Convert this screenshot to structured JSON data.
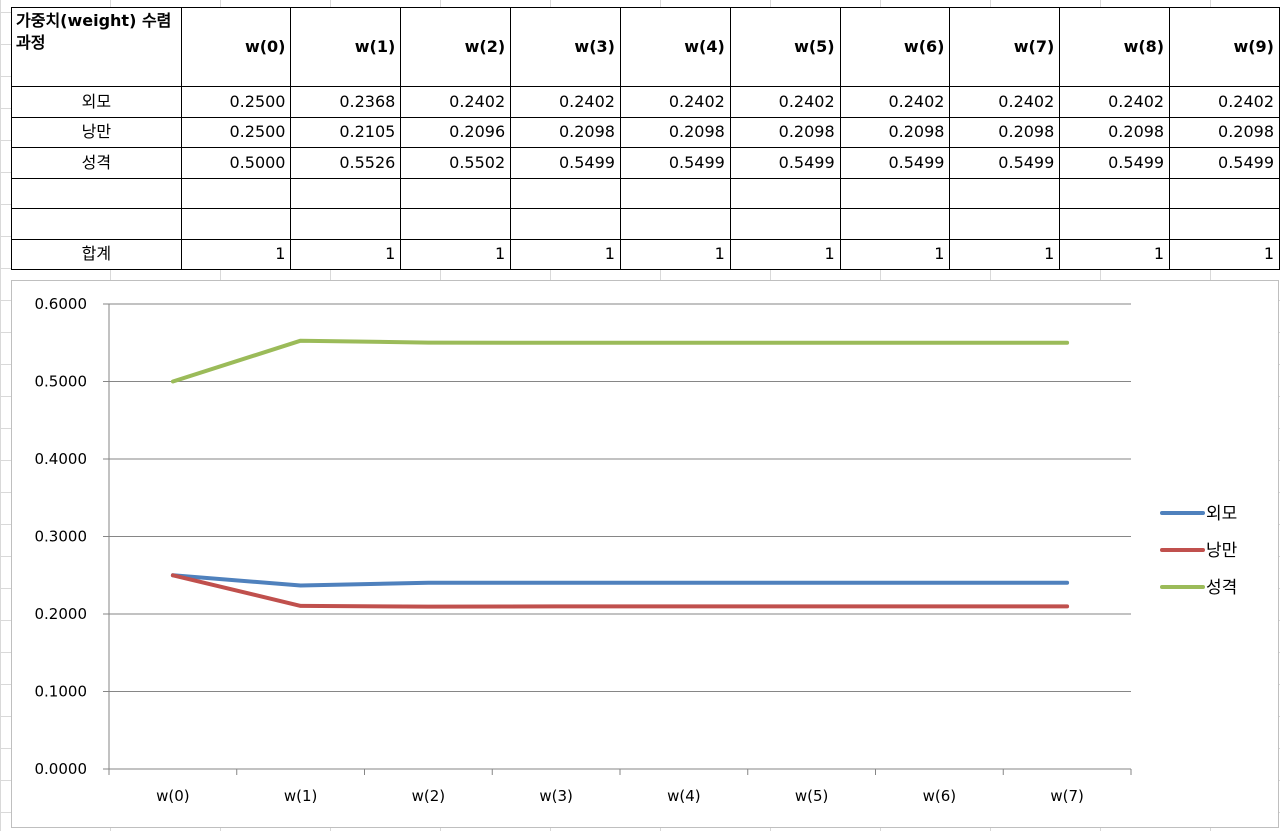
{
  "table": {
    "corner_label": "가중치(weight) 수렴과정",
    "headers": [
      "w(0)",
      "w(1)",
      "w(2)",
      "w(3)",
      "w(4)",
      "w(5)",
      "w(6)",
      "w(7)",
      "w(8)",
      "w(9)"
    ],
    "rows": [
      {
        "label": "외모",
        "values": [
          "0.2500",
          "0.2368",
          "0.2402",
          "0.2402",
          "0.2402",
          "0.2402",
          "0.2402",
          "0.2402",
          "0.2402",
          "0.2402"
        ]
      },
      {
        "label": "낭만",
        "values": [
          "0.2500",
          "0.2105",
          "0.2096",
          "0.2098",
          "0.2098",
          "0.2098",
          "0.2098",
          "0.2098",
          "0.2098",
          "0.2098"
        ]
      },
      {
        "label": "성격",
        "values": [
          "0.5000",
          "0.5526",
          "0.5502",
          "0.5499",
          "0.5499",
          "0.5499",
          "0.5499",
          "0.5499",
          "0.5499",
          "0.5499"
        ]
      },
      {
        "label": "",
        "values": [
          "",
          "",
          "",
          "",
          "",
          "",
          "",
          "",
          "",
          ""
        ]
      },
      {
        "label": "",
        "values": [
          "",
          "",
          "",
          "",
          "",
          "",
          "",
          "",
          "",
          ""
        ]
      },
      {
        "label": "합계",
        "values": [
          "1",
          "1",
          "1",
          "1",
          "1",
          "1",
          "1",
          "1",
          "1",
          "1"
        ]
      }
    ]
  },
  "chart_data": {
    "type": "line",
    "title": "",
    "xlabel": "",
    "ylabel": "",
    "categories": [
      "w(0)",
      "w(1)",
      "w(2)",
      "w(3)",
      "w(4)",
      "w(5)",
      "w(6)",
      "w(7)"
    ],
    "ylim": [
      0,
      0.6
    ],
    "yticks": [
      "0.0000",
      "0.1000",
      "0.2000",
      "0.3000",
      "0.4000",
      "0.5000",
      "0.6000"
    ],
    "ytick_values": [
      0,
      0.1,
      0.2,
      0.3,
      0.4,
      0.5,
      0.6
    ],
    "grid": true,
    "legend_position": "right",
    "series": [
      {
        "name": "외모",
        "color": "#4F81BD",
        "values": [
          0.25,
          0.2368,
          0.2402,
          0.2402,
          0.2402,
          0.2402,
          0.2402,
          0.2402
        ]
      },
      {
        "name": "낭만",
        "color": "#C0504D",
        "values": [
          0.25,
          0.2105,
          0.2096,
          0.2098,
          0.2098,
          0.2098,
          0.2098,
          0.2098
        ]
      },
      {
        "name": "성격",
        "color": "#9BBB59",
        "values": [
          0.5,
          0.5526,
          0.5502,
          0.5499,
          0.5499,
          0.5499,
          0.5499,
          0.5499
        ]
      }
    ]
  }
}
